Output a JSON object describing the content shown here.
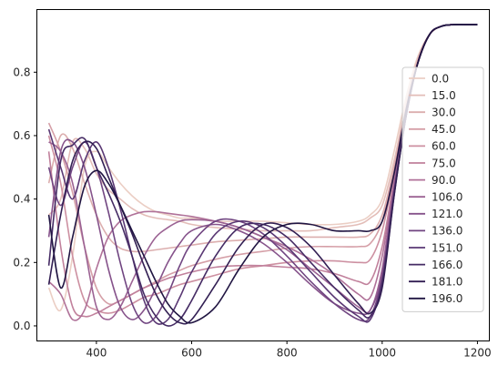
{
  "chart_data": {
    "type": "line",
    "title": "",
    "xlabel": "",
    "ylabel": "",
    "xlim": [
      275,
      1225
    ],
    "ylim": [
      -0.0475,
      0.9975
    ],
    "xticks": [
      400,
      600,
      800,
      1000,
      1200
    ],
    "yticks": [
      0.0,
      0.2,
      0.4,
      0.6,
      0.8
    ],
    "x_tick_labels": [
      "400",
      "600",
      "800",
      "1000",
      "1200"
    ],
    "y_tick_labels": [
      "0.0",
      "0.2",
      "0.4",
      "0.6",
      "0.8"
    ],
    "grid": false,
    "legend_position": "center-right",
    "x": [
      300,
      325,
      350,
      375,
      400,
      425,
      450,
      475,
      500,
      525,
      550,
      575,
      600,
      650,
      700,
      750,
      800,
      850,
      900,
      950,
      975,
      1000,
      1025,
      1050,
      1075,
      1100,
      1125,
      1150,
      1175,
      1200
    ],
    "series": [
      {
        "name": "0.0",
        "color": "#ebcec4",
        "values": [
          0.12,
          0.05,
          0.22,
          0.5,
          0.55,
          0.5,
          0.45,
          0.41,
          0.38,
          0.36,
          0.35,
          0.34,
          0.34,
          0.33,
          0.33,
          0.33,
          0.325,
          0.32,
          0.32,
          0.33,
          0.35,
          0.4,
          0.55,
          0.72,
          0.85,
          0.92,
          0.945,
          0.95,
          0.95,
          0.95
        ]
      },
      {
        "name": "15.0",
        "color": "#e3bdb8",
        "values": [
          0.35,
          0.4,
          0.58,
          0.56,
          0.48,
          0.43,
          0.4,
          0.37,
          0.35,
          0.34,
          0.335,
          0.33,
          0.32,
          0.31,
          0.305,
          0.3,
          0.3,
          0.3,
          0.31,
          0.32,
          0.34,
          0.38,
          0.52,
          0.7,
          0.84,
          0.92,
          0.945,
          0.95,
          0.95,
          0.95
        ]
      },
      {
        "name": "30.0",
        "color": "#dcaeae",
        "values": [
          0.45,
          0.6,
          0.56,
          0.45,
          0.35,
          0.28,
          0.245,
          0.235,
          0.235,
          0.24,
          0.245,
          0.25,
          0.255,
          0.265,
          0.27,
          0.275,
          0.28,
          0.28,
          0.28,
          0.28,
          0.29,
          0.35,
          0.5,
          0.69,
          0.84,
          0.92,
          0.945,
          0.95,
          0.95,
          0.95
        ]
      },
      {
        "name": "45.0",
        "color": "#d59fa7",
        "values": [
          0.64,
          0.55,
          0.42,
          0.25,
          0.12,
          0.07,
          0.08,
          0.1,
          0.12,
          0.14,
          0.16,
          0.175,
          0.19,
          0.21,
          0.225,
          0.235,
          0.245,
          0.25,
          0.25,
          0.25,
          0.26,
          0.33,
          0.49,
          0.68,
          0.83,
          0.92,
          0.945,
          0.95,
          0.95,
          0.95
        ]
      },
      {
        "name": "60.0",
        "color": "#cd90a1",
        "values": [
          0.6,
          0.45,
          0.22,
          0.08,
          0.05,
          0.04,
          0.05,
          0.07,
          0.09,
          0.1,
          0.115,
          0.13,
          0.14,
          0.16,
          0.18,
          0.19,
          0.2,
          0.205,
          0.205,
          0.2,
          0.21,
          0.3,
          0.48,
          0.68,
          0.83,
          0.92,
          0.945,
          0.95,
          0.95,
          0.95
        ]
      },
      {
        "name": "75.0",
        "color": "#c1819c",
        "values": [
          0.55,
          0.25,
          0.06,
          0.03,
          0.04,
          0.06,
          0.08,
          0.1,
          0.12,
          0.135,
          0.15,
          0.16,
          0.17,
          0.185,
          0.19,
          0.19,
          0.185,
          0.18,
          0.165,
          0.14,
          0.14,
          0.25,
          0.46,
          0.67,
          0.83,
          0.92,
          0.945,
          0.95,
          0.95,
          0.95
        ]
      },
      {
        "name": "90.0",
        "color": "#b07299",
        "values": [
          0.14,
          0.1,
          0.02,
          0.05,
          0.18,
          0.28,
          0.33,
          0.35,
          0.36,
          0.36,
          0.355,
          0.35,
          0.345,
          0.33,
          0.31,
          0.28,
          0.25,
          0.21,
          0.16,
          0.1,
          0.09,
          0.22,
          0.45,
          0.67,
          0.83,
          0.92,
          0.945,
          0.95,
          0.95,
          0.95
        ]
      },
      {
        "name": "106.0",
        "color": "#9b6293",
        "values": [
          0.58,
          0.55,
          0.45,
          0.25,
          0.06,
          0.02,
          0.06,
          0.14,
          0.22,
          0.28,
          0.31,
          0.33,
          0.335,
          0.33,
          0.31,
          0.28,
          0.24,
          0.18,
          0.12,
          0.06,
          0.05,
          0.18,
          0.44,
          0.66,
          0.83,
          0.92,
          0.945,
          0.95,
          0.95,
          0.95
        ]
      },
      {
        "name": "121.0",
        "color": "#86538b",
        "values": [
          0.28,
          0.55,
          0.58,
          0.5,
          0.35,
          0.18,
          0.06,
          0.02,
          0.05,
          0.12,
          0.2,
          0.26,
          0.3,
          0.32,
          0.3,
          0.26,
          0.2,
          0.13,
          0.07,
          0.04,
          0.05,
          0.16,
          0.43,
          0.66,
          0.83,
          0.92,
          0.945,
          0.95,
          0.95,
          0.95
        ]
      },
      {
        "name": "136.0",
        "color": "#704581",
        "values": [
          0.5,
          0.38,
          0.5,
          0.58,
          0.5,
          0.36,
          0.2,
          0.07,
          0.01,
          0.03,
          0.1,
          0.19,
          0.26,
          0.33,
          0.33,
          0.29,
          0.22,
          0.14,
          0.07,
          0.02,
          0.03,
          0.15,
          0.42,
          0.66,
          0.83,
          0.92,
          0.945,
          0.95,
          0.95,
          0.95
        ]
      },
      {
        "name": "151.0",
        "color": "#5a3874",
        "values": [
          0.62,
          0.5,
          0.4,
          0.52,
          0.58,
          0.5,
          0.37,
          0.22,
          0.08,
          0.01,
          0.02,
          0.09,
          0.17,
          0.29,
          0.33,
          0.31,
          0.25,
          0.17,
          0.09,
          0.03,
          0.02,
          0.14,
          0.42,
          0.66,
          0.83,
          0.92,
          0.945,
          0.95,
          0.95,
          0.95
        ]
      },
      {
        "name": "166.0",
        "color": "#452b64",
        "values": [
          0.19,
          0.52,
          0.57,
          0.59,
          0.5,
          0.42,
          0.33,
          0.22,
          0.1,
          0.03,
          0.0,
          0.02,
          0.08,
          0.22,
          0.31,
          0.32,
          0.28,
          0.2,
          0.12,
          0.05,
          0.03,
          0.13,
          0.41,
          0.66,
          0.83,
          0.92,
          0.945,
          0.95,
          0.95,
          0.95
        ]
      },
      {
        "name": "181.0",
        "color": "#321f53",
        "values": [
          0.13,
          0.35,
          0.52,
          0.58,
          0.56,
          0.47,
          0.38,
          0.29,
          0.19,
          0.1,
          0.04,
          0.01,
          0.02,
          0.13,
          0.25,
          0.32,
          0.31,
          0.25,
          0.16,
          0.07,
          0.04,
          0.12,
          0.41,
          0.66,
          0.83,
          0.92,
          0.945,
          0.95,
          0.95,
          0.95
        ]
      },
      {
        "name": "196.0",
        "color": "#201542",
        "values": [
          0.35,
          0.12,
          0.28,
          0.44,
          0.49,
          0.45,
          0.38,
          0.3,
          0.22,
          0.14,
          0.07,
          0.03,
          0.01,
          0.06,
          0.18,
          0.28,
          0.32,
          0.32,
          0.3,
          0.3,
          0.3,
          0.33,
          0.48,
          0.68,
          0.83,
          0.92,
          0.945,
          0.95,
          0.95,
          0.95
        ]
      }
    ]
  }
}
